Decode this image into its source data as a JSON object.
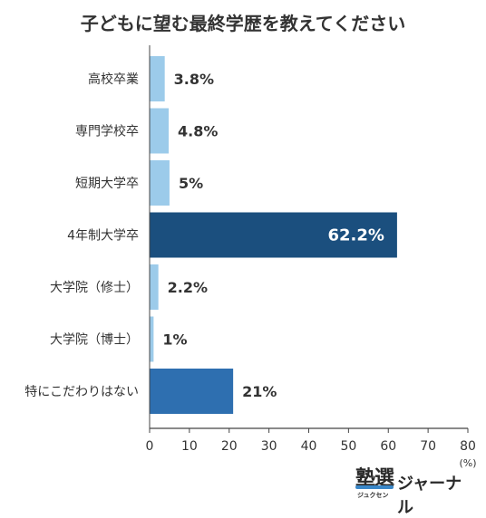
{
  "chart_data": {
    "type": "bar",
    "orientation": "horizontal",
    "title": "子どもに望む最終学歴を教えてください",
    "categories": [
      "高校卒業",
      "専門学校卒",
      "短期大学卒",
      "4年制大学卒",
      "大学院（修士）",
      "大学院（博士）",
      "特にこだわりはない"
    ],
    "values": [
      3.8,
      4.8,
      5,
      62.2,
      2.2,
      1,
      21
    ],
    "value_labels": [
      "3.8%",
      "4.8%",
      "5%",
      "62.2%",
      "2.2%",
      "1%",
      "21%"
    ],
    "bar_colors": [
      "#9ccbea",
      "#9ccbea",
      "#9ccbea",
      "#1b4f7e",
      "#9ccbea",
      "#9ccbea",
      "#2e6fb0"
    ],
    "xlim": [
      0,
      80
    ],
    "xticks": [
      0,
      10,
      20,
      30,
      40,
      50,
      60,
      70,
      80
    ],
    "xunit": "(%)",
    "grid": false
  },
  "logo": {
    "kanji": "塾選",
    "kana": "ジャーナル",
    "sub": "ジュクセン"
  }
}
